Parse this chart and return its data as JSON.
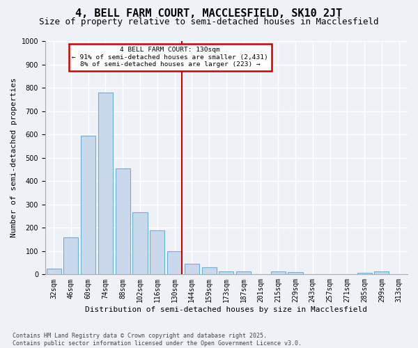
{
  "title": "4, BELL FARM COURT, MACCLESFIELD, SK10 2JT",
  "subtitle": "Size of property relative to semi-detached houses in Macclesfield",
  "xlabel": "Distribution of semi-detached houses by size in Macclesfield",
  "ylabel": "Number of semi-detached properties",
  "categories": [
    "32sqm",
    "46sqm",
    "60sqm",
    "74sqm",
    "88sqm",
    "102sqm",
    "116sqm",
    "130sqm",
    "144sqm",
    "159sqm",
    "173sqm",
    "187sqm",
    "201sqm",
    "215sqm",
    "229sqm",
    "243sqm",
    "257sqm",
    "271sqm",
    "285sqm",
    "299sqm",
    "313sqm"
  ],
  "values": [
    25,
    160,
    595,
    780,
    455,
    265,
    190,
    100,
    47,
    30,
    14,
    13,
    0,
    14,
    11,
    0,
    0,
    0,
    8,
    12,
    0
  ],
  "bar_color": "#c9d9eb",
  "bar_edge_color": "#6aafd4",
  "marker_index": 7,
  "marker_color": "#cc0000",
  "annotation_line0": "4 BELL FARM COURT: 130sqm",
  "annotation_line1": "← 91% of semi-detached houses are smaller (2,431)",
  "annotation_line2": "8% of semi-detached houses are larger (223) →",
  "ylim_max": 1000,
  "bg_color": "#eef2f7",
  "grid_color": "#ffffff",
  "title_fontsize": 11,
  "subtitle_fontsize": 9,
  "axis_label_fontsize": 8,
  "tick_fontsize": 7,
  "footer_line1": "Contains HM Land Registry data © Crown copyright and database right 2025.",
  "footer_line2": "Contains public sector information licensed under the Open Government Licence v3.0.",
  "footer_fontsize": 6
}
